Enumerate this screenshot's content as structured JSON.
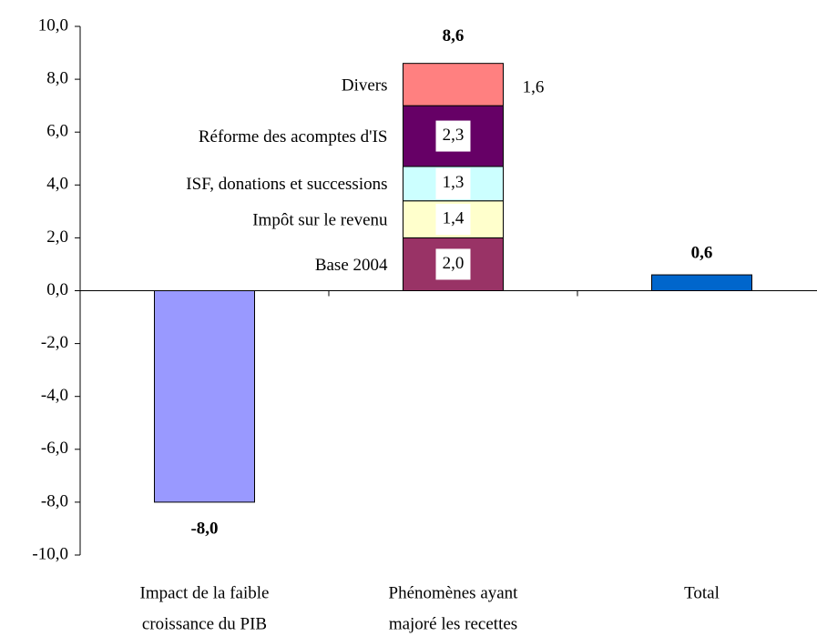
{
  "chart_data": {
    "type": "waterfall",
    "categories": [
      [
        "Impact de la faible",
        "croissance du PIB"
      ],
      [
        "Phénomènes ayant",
        "majoré les recettes"
      ],
      [
        "Total"
      ]
    ],
    "values": [
      -8.0,
      null,
      0.6
    ],
    "value_labels": [
      "-8,0",
      null,
      "0,6"
    ],
    "colors": [
      "#9999ff",
      null,
      "#0066cc"
    ],
    "stack": {
      "category_index": 1,
      "total": 8.6,
      "total_label": "8,6",
      "segments": [
        {
          "name": "Base 2004",
          "value": 2.0,
          "value_label": "2,0",
          "color": "#993366"
        },
        {
          "name": "Impôt sur le revenu",
          "value": 1.4,
          "value_label": "1,4",
          "color": "#ffffcc"
        },
        {
          "name": "ISF, donations et successions",
          "value": 1.3,
          "value_label": "1,3",
          "color": "#ccffff"
        },
        {
          "name": "Réforme des acomptes d'IS",
          "value": 2.3,
          "value_label": "2,3",
          "color": "#660066"
        },
        {
          "name": "Divers",
          "value": 1.6,
          "value_label": "1,6",
          "color": "#ff8080"
        }
      ]
    },
    "ylim": [
      -10,
      10
    ],
    "yticks": [
      {
        "value": -10,
        "label": "-10,0"
      },
      {
        "value": -8,
        "label": "-8,0"
      },
      {
        "value": -6,
        "label": "-6,0"
      },
      {
        "value": -4,
        "label": "-4,0"
      },
      {
        "value": -2,
        "label": "-2,0"
      },
      {
        "value": 0,
        "label": "0,0"
      },
      {
        "value": 2,
        "label": "2,0"
      },
      {
        "value": 4,
        "label": "4,0"
      },
      {
        "value": 6,
        "label": "6,0"
      },
      {
        "value": 8,
        "label": "8,0"
      },
      {
        "value": 10,
        "label": "10,0"
      }
    ]
  }
}
